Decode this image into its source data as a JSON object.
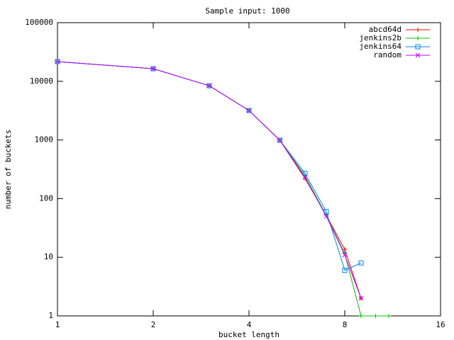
{
  "chart_data": {
    "type": "line",
    "title": "Sample input: 1000",
    "x_label": "bucket length",
    "y_label": "number of buckets",
    "x": [
      1,
      2,
      3,
      4,
      5,
      6,
      7,
      8,
      9,
      10,
      11
    ],
    "series": [
      {
        "name": "abcd64d",
        "color": "#ff0000",
        "marker": "plus",
        "values": [
          21700,
          16400,
          8400,
          3180,
          990,
          220,
          52,
          13.6,
          2,
          null,
          null
        ]
      },
      {
        "name": "jenkins2b",
        "color": "#00c000",
        "marker": "plus",
        "values": [
          21700,
          16400,
          8400,
          3180,
          990,
          245,
          52,
          11.5,
          1,
          1,
          1
        ]
      },
      {
        "name": "jenkins64",
        "color": "#0080ff",
        "marker": "box",
        "values": [
          21700,
          16400,
          8400,
          3180,
          990,
          270,
          60,
          6,
          8,
          null,
          null
        ]
      },
      {
        "name": "random",
        "color": "#c000ff",
        "marker": "cross",
        "values": [
          21700,
          16400,
          8400,
          3180,
          990,
          230,
          50,
          11,
          2,
          null,
          null
        ]
      }
    ],
    "xlog": true,
    "ylog": true,
    "xlim": [
      1,
      16
    ],
    "xticks": [
      1,
      2,
      4,
      8,
      16
    ],
    "ylim": [
      1,
      100000
    ],
    "yticks": [
      1,
      10,
      100,
      1000,
      10000,
      100000
    ],
    "legend": "top-right"
  }
}
